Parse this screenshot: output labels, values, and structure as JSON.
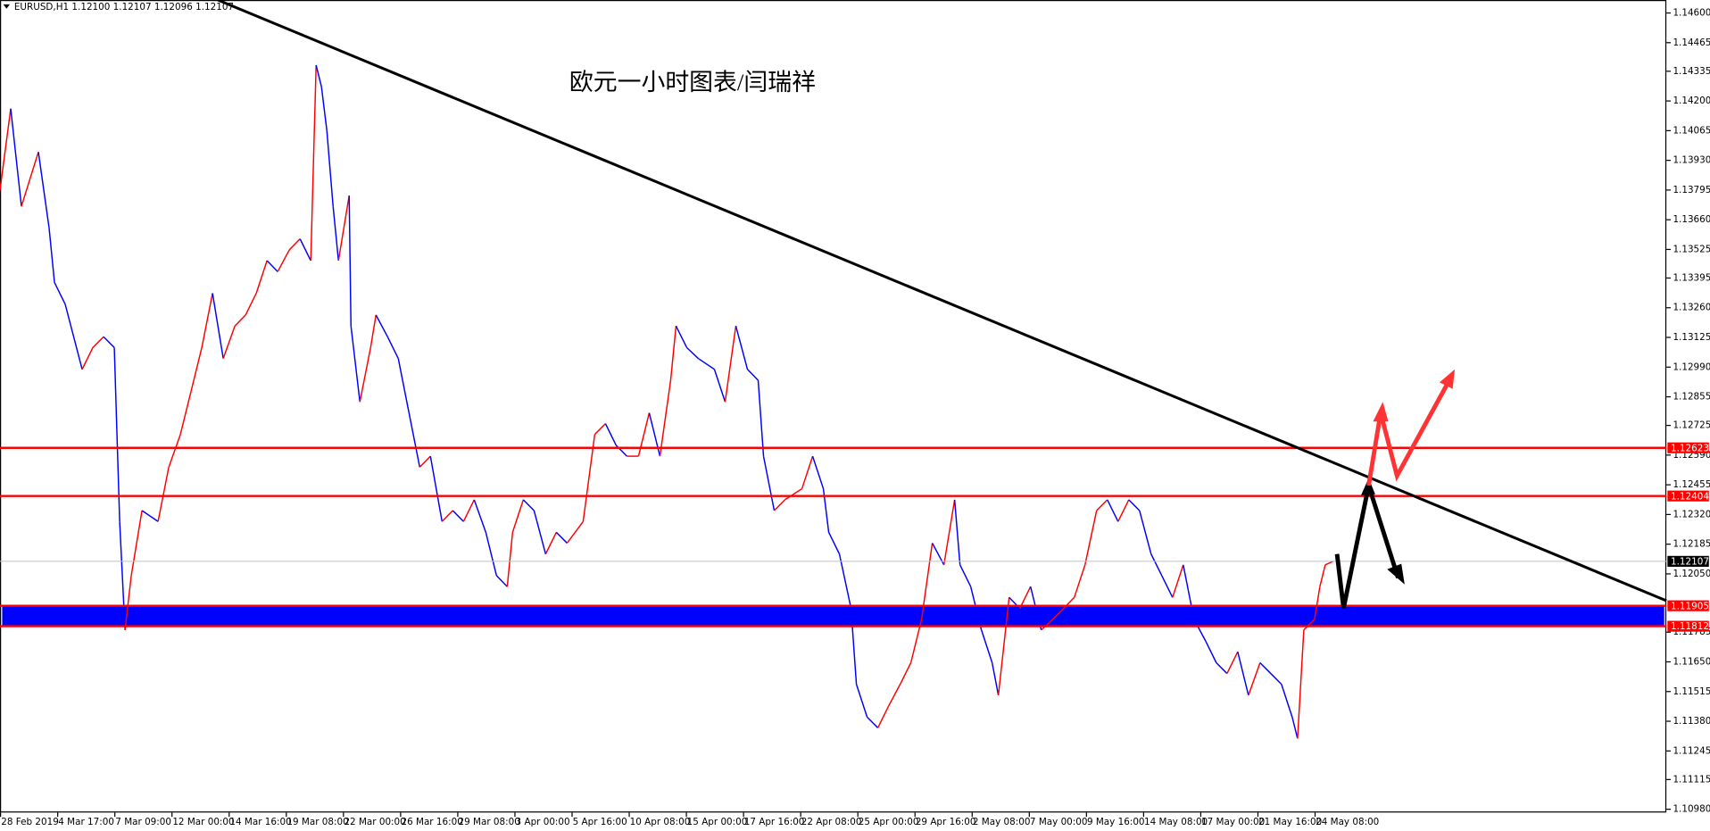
{
  "chart_data": {
    "type": "line",
    "title": "EURUSD,H1  1.12100 1.12107 1.12096 1.12107",
    "annotation": "欧元一小时图表/闫瑞祥",
    "xlim": [
      0,
      1866
    ],
    "ylim": [
      1.10965,
      1.14659
    ],
    "xticks": [
      {
        "value": 0,
        "label": "28 Feb 2019"
      },
      {
        "value": 64,
        "label": "4 Mar 17:00"
      },
      {
        "value": 128,
        "label": "7 Mar 09:00"
      },
      {
        "value": 192,
        "label": "12 Mar 00:00"
      },
      {
        "value": 256,
        "label": "14 Mar 16:00"
      },
      {
        "value": 320,
        "label": "19 Mar 08:00"
      },
      {
        "value": 384,
        "label": "22 Mar 00:00"
      },
      {
        "value": 448,
        "label": "26 Mar 16:00"
      },
      {
        "value": 512,
        "label": "29 Mar 08:00"
      },
      {
        "value": 576,
        "label": "3 Apr 00:00"
      },
      {
        "value": 640,
        "label": "5 Apr 16:00"
      },
      {
        "value": 704,
        "label": "10 Apr 08:00"
      },
      {
        "value": 768,
        "label": "15 Apr 00:00"
      },
      {
        "value": 832,
        "label": "17 Apr 16:00"
      },
      {
        "value": 896,
        "label": "22 Apr 08:00"
      },
      {
        "value": 960,
        "label": "25 Apr 00:00"
      },
      {
        "value": 1024,
        "label": "29 Apr 16:00"
      },
      {
        "value": 1088,
        "label": "2 May 08:00"
      },
      {
        "value": 1152,
        "label": "7 May 00:00"
      },
      {
        "value": 1216,
        "label": "9 May 16:00"
      },
      {
        "value": 1280,
        "label": "14 May 08:00"
      },
      {
        "value": 1344,
        "label": "17 May 00:00"
      },
      {
        "value": 1408,
        "label": "21 May 16:00"
      },
      {
        "value": 1472,
        "label": "24 May 08:00"
      }
    ],
    "yticks": [
      {
        "value": 1.146,
        "label": "1.14600"
      },
      1.14465,
      1.14335,
      {
        "value": 1.142,
        "label": "1.14200"
      },
      1.14065,
      {
        "value": 1.1393,
        "label": "1.13930"
      },
      1.13795,
      {
        "value": 1.1366,
        "label": "1.13660"
      },
      1.13525,
      1.13395,
      {
        "value": 1.1326,
        "label": "1.13260"
      },
      1.13125,
      {
        "value": 1.1299,
        "label": "1.12990"
      },
      1.12855,
      1.12725,
      {
        "value": 1.1259,
        "label": "1.12590"
      },
      1.12455,
      {
        "value": 1.1232,
        "label": "1.12320"
      },
      1.12185,
      {
        "value": 1.1205,
        "label": "1.12050"
      },
      1.11785,
      {
        "value": 1.1165,
        "label": "1.11650"
      },
      1.11515,
      {
        "value": 1.1138,
        "label": "1.11380"
      },
      1.11245,
      1.11115,
      {
        "value": 1.1098,
        "label": "1.10980"
      }
    ],
    "up_color": "#ff0000",
    "down_color": "#0000ff",
    "series": [
      {
        "name": "EURUSD",
        "x": [
          0,
          12,
          24,
          43,
          55,
          61,
          73,
          92,
          104,
          116,
          128,
          134,
          140,
          147,
          159,
          177,
          189,
          202,
          214,
          226,
          238,
          250,
          263,
          275,
          287,
          299,
          311,
          324,
          336,
          348,
          354,
          360,
          366,
          373,
          379,
          391,
          393,
          403,
          415,
          421,
          434,
          446,
          458,
          470,
          482,
          495,
          507,
          519,
          531,
          544,
          556,
          568,
          574,
          586,
          598,
          611,
          623,
          635,
          653,
          666,
          678,
          690,
          702,
          715,
          727,
          739,
          751,
          757,
          769,
          782,
          800,
          812,
          824,
          837,
          849,
          855,
          867,
          879,
          898,
          910,
          922,
          928,
          940,
          953,
          959,
          971,
          983,
          995,
          1008,
          1020,
          1032,
          1044,
          1057,
          1069,
          1075,
          1087,
          1099,
          1111,
          1118,
          1130,
          1142,
          1154,
          1166,
          1179,
          1191,
          1203,
          1215,
          1228,
          1240,
          1252,
          1264,
          1276,
          1289,
          1301,
          1313,
          1325,
          1337,
          1350,
          1362,
          1374,
          1386,
          1398,
          1411,
          1423,
          1435,
          1447,
          1453,
          1460,
          1472,
          1478,
          1484,
          1493
        ],
        "values": [
          1.13795,
          1.14165,
          1.13721,
          1.13968,
          1.13622,
          1.13375,
          1.13276,
          1.1298,
          1.13079,
          1.13128,
          1.13079,
          1.12288,
          1.11795,
          1.12042,
          1.12338,
          1.12288,
          1.12535,
          1.12684,
          1.12881,
          1.13079,
          1.13326,
          1.13029,
          1.13177,
          1.13227,
          1.13326,
          1.13474,
          1.13424,
          1.13523,
          1.13573,
          1.13474,
          1.14363,
          1.14264,
          1.14066,
          1.13721,
          1.13474,
          1.1377,
          1.13177,
          1.12832,
          1.13079,
          1.13227,
          1.13128,
          1.13029,
          1.12782,
          1.12535,
          1.12585,
          1.12288,
          1.12338,
          1.12288,
          1.12387,
          1.12239,
          1.12042,
          1.11992,
          1.12239,
          1.12387,
          1.12338,
          1.1214,
          1.12239,
          1.1219,
          1.12288,
          1.12684,
          1.12733,
          1.12634,
          1.12585,
          1.12585,
          1.12782,
          1.12585,
          1.1293,
          1.13177,
          1.13079,
          1.13029,
          1.1298,
          1.12832,
          1.13177,
          1.1298,
          1.1293,
          1.12585,
          1.12338,
          1.12387,
          1.12437,
          1.12585,
          1.12437,
          1.12239,
          1.1214,
          1.11893,
          1.11548,
          1.11399,
          1.1135,
          1.11449,
          1.11548,
          1.11646,
          1.11844,
          1.1219,
          1.12091,
          1.12387,
          1.12091,
          1.11992,
          1.11795,
          1.11646,
          1.11498,
          1.11943,
          1.11893,
          1.11992,
          1.11795,
          1.11844,
          1.11893,
          1.11943,
          1.12091,
          1.12338,
          1.12387,
          1.12288,
          1.12387,
          1.12338,
          1.1214,
          1.12042,
          1.11943,
          1.12091,
          1.11844,
          1.11745,
          1.11646,
          1.11597,
          1.11696,
          1.11498,
          1.11646,
          1.11597,
          1.11548,
          1.11399,
          1.11301,
          1.11795,
          1.11844,
          1.11992,
          1.12091,
          1.12107
        ]
      }
    ],
    "trendline": {
      "x": [
        244,
        1866
      ],
      "values": [
        1.14659,
        1.11928
      ],
      "color": "#000000"
    },
    "levels": [
      {
        "value": 1.12623,
        "color": "#ff0000"
      },
      {
        "value": 1.12404,
        "color": "#ff0000"
      },
      {
        "value": 1.12107,
        "color": "#c0c0c0",
        "label_color": "#000000"
      },
      {
        "value": 1.11905,
        "color": "#ff0000"
      },
      {
        "value": 1.11812,
        "color": "#ff0000"
      }
    ],
    "zone_color": "#0000ff"
  }
}
